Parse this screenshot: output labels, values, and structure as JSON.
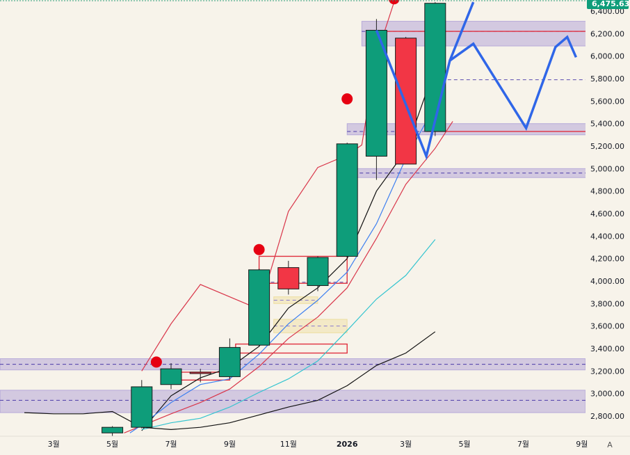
{
  "chart_data": {
    "type": "candlestick",
    "title": "",
    "price_axis": {
      "ticks": [
        2800,
        3000,
        3200,
        3400,
        3600,
        3800,
        4000,
        4200,
        4400,
        4600,
        4800,
        5000,
        5200,
        5400,
        5600,
        5800,
        6000,
        6200,
        6400
      ],
      "tick_labels": [
        "2,800.00",
        "3,000.00",
        "3,200.00",
        "3,400.00",
        "3,600.00",
        "3,800.00",
        "4,000.00",
        "4,200.00",
        "4,400.00",
        "4,600.00",
        "4,800.00",
        "5,000.00",
        "5,200.00",
        "5,400.00",
        "5,600.00",
        "5,800.00",
        "6,000.00",
        "6,200.00",
        "6,400.00"
      ],
      "range": [
        2700,
        6480
      ],
      "current_price_label": "6,475.63",
      "current_price": 6475.63
    },
    "time_axis": {
      "labels": [
        {
          "text": "3월",
          "month": 3
        },
        {
          "text": "5월",
          "month": 5
        },
        {
          "text": "7월",
          "month": 7
        },
        {
          "text": "9월",
          "month": 9
        },
        {
          "text": "11월",
          "month": 11
        },
        {
          "text": "2026",
          "month": 13
        },
        {
          "text": "3월",
          "month": 15
        },
        {
          "text": "5월",
          "month": 17
        },
        {
          "text": "7월",
          "month": 19
        },
        {
          "text": "9월",
          "month": 21
        }
      ],
      "corner_label": "A"
    },
    "candles": [
      {
        "m": 5,
        "open": 2650,
        "high": 2710,
        "low": 2600,
        "close": 2700
      },
      {
        "m": 6,
        "open": 2700,
        "high": 3120,
        "low": 2690,
        "close": 3060
      },
      {
        "m": 7,
        "open": 3080,
        "high": 3270,
        "low": 3040,
        "close": 3220
      },
      {
        "m": 8,
        "open": 3190,
        "high": 3220,
        "low": 3100,
        "close": 3180
      },
      {
        "m": 9,
        "open": 3150,
        "high": 3490,
        "low": 3130,
        "close": 3410
      },
      {
        "m": 10,
        "open": 3430,
        "high": 4110,
        "low": 3420,
        "close": 4100
      },
      {
        "m": 11,
        "open": 4120,
        "high": 4180,
        "low": 3880,
        "close": 3930
      },
      {
        "m": 12,
        "open": 3960,
        "high": 4220,
        "low": 3910,
        "close": 4210
      },
      {
        "m": 13,
        "open": 4220,
        "high": 5230,
        "low": 4210,
        "close": 5220
      },
      {
        "m": 14,
        "open": 5110,
        "high": 6330,
        "low": 4900,
        "close": 6230
      },
      {
        "m": 15,
        "open": 6160,
        "high": 6170,
        "low": 5040,
        "close": 5040
      },
      {
        "m": 16,
        "open": 5330,
        "high": 6480,
        "low": 5290,
        "close": 6470
      }
    ],
    "series": [
      {
        "kind": "envelope-upper",
        "color": "#d9364a",
        "points": [
          [
            6,
            3200
          ],
          [
            7,
            3620
          ],
          [
            8,
            3970
          ],
          [
            10,
            3750
          ],
          [
            11,
            4620
          ],
          [
            12,
            5010
          ],
          [
            13,
            5120
          ],
          [
            13.5,
            5210
          ],
          [
            14,
            6000
          ],
          [
            14.6,
            6480
          ]
        ]
      },
      {
        "kind": "envelope-lower",
        "color": "#d9364a",
        "points": [
          [
            5.4,
            2650
          ],
          [
            7,
            2820
          ],
          [
            8,
            2920
          ],
          [
            9,
            3040
          ],
          [
            10,
            3240
          ],
          [
            11,
            3490
          ],
          [
            12,
            3680
          ],
          [
            13,
            3940
          ],
          [
            14,
            4380
          ],
          [
            15,
            4860
          ],
          [
            16,
            5180
          ],
          [
            16.6,
            5420
          ]
        ]
      },
      {
        "kind": "ma-fast",
        "color": "#111111",
        "points": [
          [
            6,
            2670
          ],
          [
            7,
            2980
          ],
          [
            8,
            3140
          ],
          [
            9,
            3230
          ],
          [
            10,
            3420
          ],
          [
            11,
            3760
          ],
          [
            12,
            3940
          ],
          [
            13,
            4200
          ],
          [
            14,
            4800
          ],
          [
            15,
            5160
          ],
          [
            16,
            5900
          ]
        ]
      },
      {
        "kind": "ma-blue",
        "color": "#3d7ff0",
        "points": [
          [
            5.6,
            2650
          ],
          [
            6,
            2720
          ],
          [
            7,
            2920
          ],
          [
            8,
            3080
          ],
          [
            9,
            3130
          ],
          [
            10,
            3350
          ],
          [
            11,
            3620
          ],
          [
            12,
            3830
          ],
          [
            13,
            4080
          ],
          [
            14,
            4510
          ],
          [
            15,
            5090
          ],
          [
            16,
            5560
          ]
        ]
      },
      {
        "kind": "ma-cyan",
        "color": "#33c4cf",
        "points": [
          [
            6,
            2680
          ],
          [
            7,
            2740
          ],
          [
            8,
            2780
          ],
          [
            9,
            2880
          ],
          [
            10,
            3010
          ],
          [
            11,
            3130
          ],
          [
            12,
            3290
          ],
          [
            13,
            3560
          ],
          [
            14,
            3840
          ],
          [
            15,
            4050
          ],
          [
            16,
            4370
          ]
        ]
      },
      {
        "kind": "ma-slow",
        "color": "#111111",
        "points": [
          [
            2,
            2830
          ],
          [
            3,
            2820
          ],
          [
            4,
            2820
          ],
          [
            5,
            2840
          ],
          [
            6,
            2700
          ],
          [
            7,
            2680
          ],
          [
            8,
            2700
          ],
          [
            9,
            2740
          ],
          [
            10,
            2810
          ],
          [
            11,
            2880
          ],
          [
            12,
            2940
          ],
          [
            13,
            3070
          ],
          [
            14,
            3250
          ],
          [
            15,
            3360
          ],
          [
            16,
            3550
          ]
        ]
      }
    ],
    "projection": {
      "color": "#2f66e8",
      "points": [
        [
          14,
          6230
        ],
        [
          15.7,
          5110
        ],
        [
          16.5,
          5960
        ],
        [
          17.3,
          6110
        ],
        [
          19.1,
          5360
        ],
        [
          20.1,
          6080
        ],
        [
          20.5,
          6170
        ],
        [
          20.8,
          5990
        ]
      ],
      "arrow_up": [
        [
          16.5,
          5960
        ],
        [
          17.3,
          6480
        ]
      ]
    },
    "signal_dots": {
      "color": "#e60012",
      "points": [
        [
          6.5,
          3280
        ],
        [
          10,
          4280
        ],
        [
          13,
          5620
        ],
        [
          14.6,
          6510
        ]
      ]
    },
    "zones": [
      {
        "color": "#8e7ccf",
        "y0": 3210,
        "y1": 3310,
        "mid": 3260
      },
      {
        "color": "#8e7ccf",
        "y0": 2830,
        "y1": 3030,
        "mid": 2940
      },
      {
        "color": "#8e7ccf",
        "y0": 6090,
        "y1": 6310,
        "mid": 6220,
        "x0": 13.5,
        "x1": 21.5
      },
      {
        "color": "#8e7ccf",
        "y0": 5300,
        "y1": 5400,
        "mid": 5330,
        "x0": 13,
        "x1": 21.5
      },
      {
        "color": "#8e7ccf",
        "y0": 4920,
        "y1": 5000,
        "mid": 4960,
        "x0": 13,
        "x1": 21.5
      },
      {
        "color": "#e8d06a",
        "y0": 3540,
        "y1": 3660,
        "mid": 3600,
        "x0": 10.5,
        "x1": 13
      },
      {
        "color": "#e8d06a",
        "y0": 3800,
        "y1": 3860,
        "mid": 3830,
        "x0": 10.5,
        "x1": 12
      }
    ],
    "h_lines": [
      {
        "y": 6220,
        "color": "#e0303f",
        "x0": 14.2,
        "x1": 23.5
      },
      {
        "y": 5330,
        "color": "#e0303f",
        "x0": 15.7,
        "x1": 23.5
      }
    ],
    "dashed_lines": [
      {
        "y": 5790,
        "color": "#5a4bb0",
        "x0": 16,
        "x1": 22.8
      },
      {
        "y": 3990,
        "color": "#5a4bb0",
        "x0": 10.4,
        "x1": 13
      }
    ],
    "boxes": [
      {
        "color": "#e0303f",
        "x0": 10,
        "x1": 13,
        "y0": 3980,
        "y1": 4220
      },
      {
        "color": "#e0303f",
        "x0": 9.2,
        "x1": 13,
        "y0": 3360,
        "y1": 3440
      },
      {
        "color": "#e0303f",
        "x0": 7.3,
        "x1": 9,
        "y0": 3120,
        "y1": 3190
      }
    ]
  }
}
